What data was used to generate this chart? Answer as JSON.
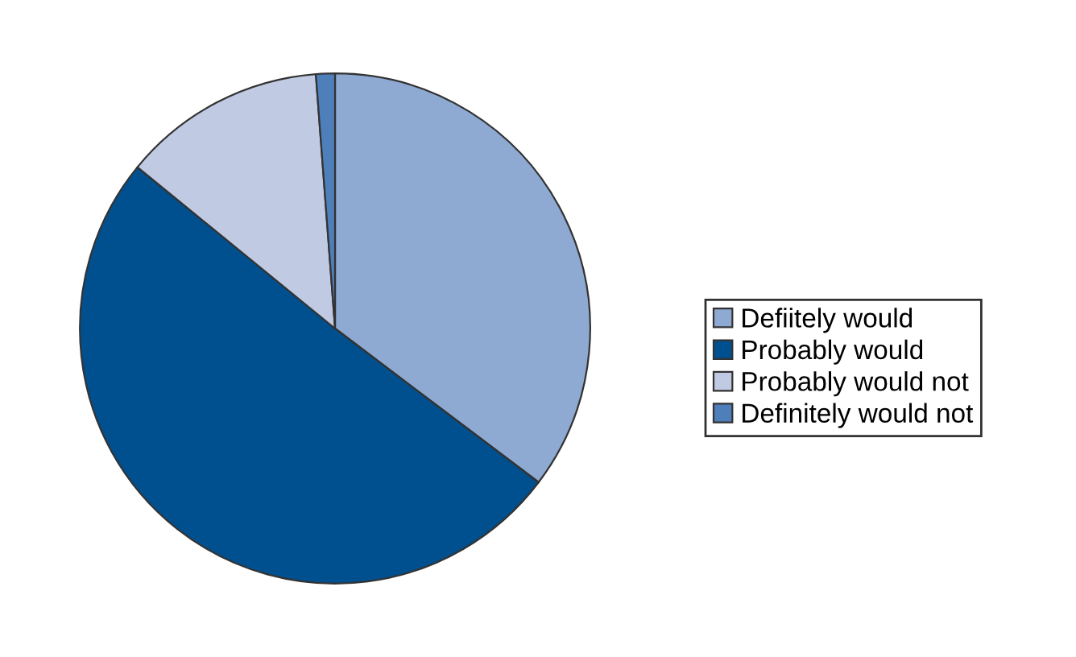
{
  "chart_data": {
    "type": "pie",
    "categories": [
      "Defiitely would",
      "Probably would",
      "Probably would not",
      "Definitely would not"
    ],
    "values": [
      35.3,
      50.6,
      12.9,
      1.2
    ],
    "colors": [
      "#8eaad2",
      "#00508f",
      "#c0cbe3",
      "#4f7fba"
    ],
    "legend": "right"
  }
}
